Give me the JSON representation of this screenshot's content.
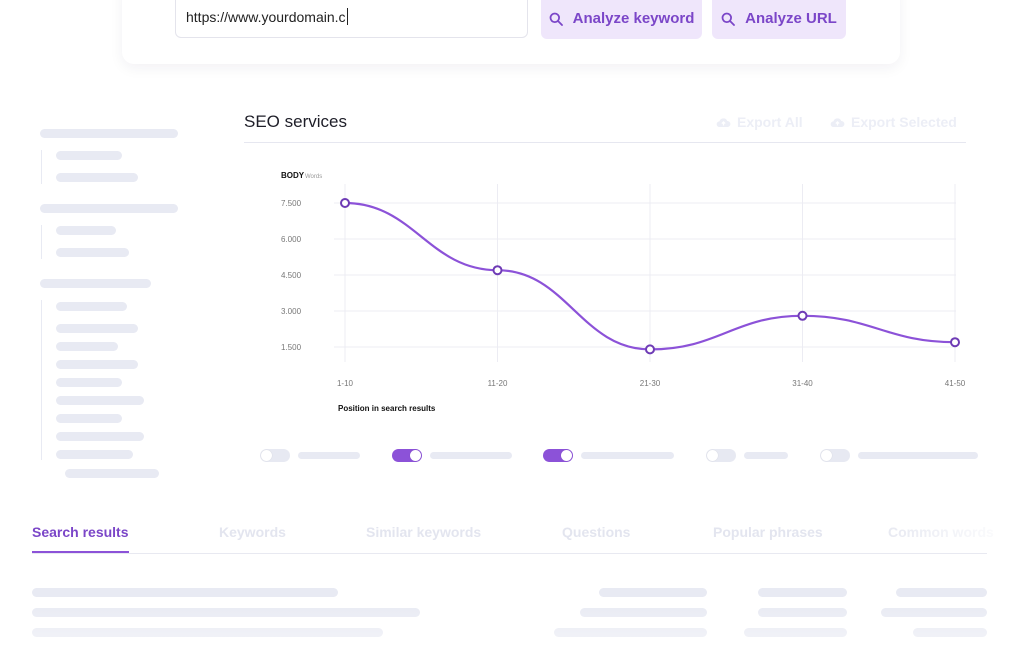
{
  "search": {
    "url_value": "https://www.yourdomain.c",
    "analyze_keyword_label": "Analyze keyword",
    "analyze_url_label": "Analyze URL"
  },
  "panel": {
    "title": "SEO services",
    "export_all_label": "Export All",
    "export_selected_label": "Export Selected"
  },
  "toggles": [
    {
      "on": false
    },
    {
      "on": true
    },
    {
      "on": true
    },
    {
      "on": false
    },
    {
      "on": false
    }
  ],
  "tabs": [
    {
      "label": "Search results",
      "active": true
    },
    {
      "label": "Keywords",
      "active": false
    },
    {
      "label": "Similar keywords",
      "active": false
    },
    {
      "label": "Questions",
      "active": false
    },
    {
      "label": "Popular phrases",
      "active": false
    },
    {
      "label": "Common words",
      "active": false
    }
  ],
  "colors": {
    "accent": "#8c52d8",
    "accent_text": "#7b46c8",
    "button_bg": "#efe6fb",
    "placeholder": "#e8eaf3"
  },
  "icons": [
    "search-icon",
    "cloud-upload-icon"
  ],
  "chart_data": {
    "type": "line",
    "title": "BODY",
    "subtitle": "Words",
    "xlabel": "Position in search results",
    "ylabel": "",
    "categories": [
      "1-10",
      "11-20",
      "21-30",
      "31-40",
      "41-50"
    ],
    "series": [
      {
        "values": [
          7500,
          4700,
          1400,
          2800,
          1700
        ]
      }
    ],
    "yticks": [
      "7.500",
      "6.000",
      "4.500",
      "3.000",
      "1.500"
    ],
    "ytick_values": [
      7500,
      6000,
      4500,
      3000,
      1500
    ],
    "ylim": [
      1000,
      8300
    ],
    "grid": true,
    "legend": "none"
  }
}
